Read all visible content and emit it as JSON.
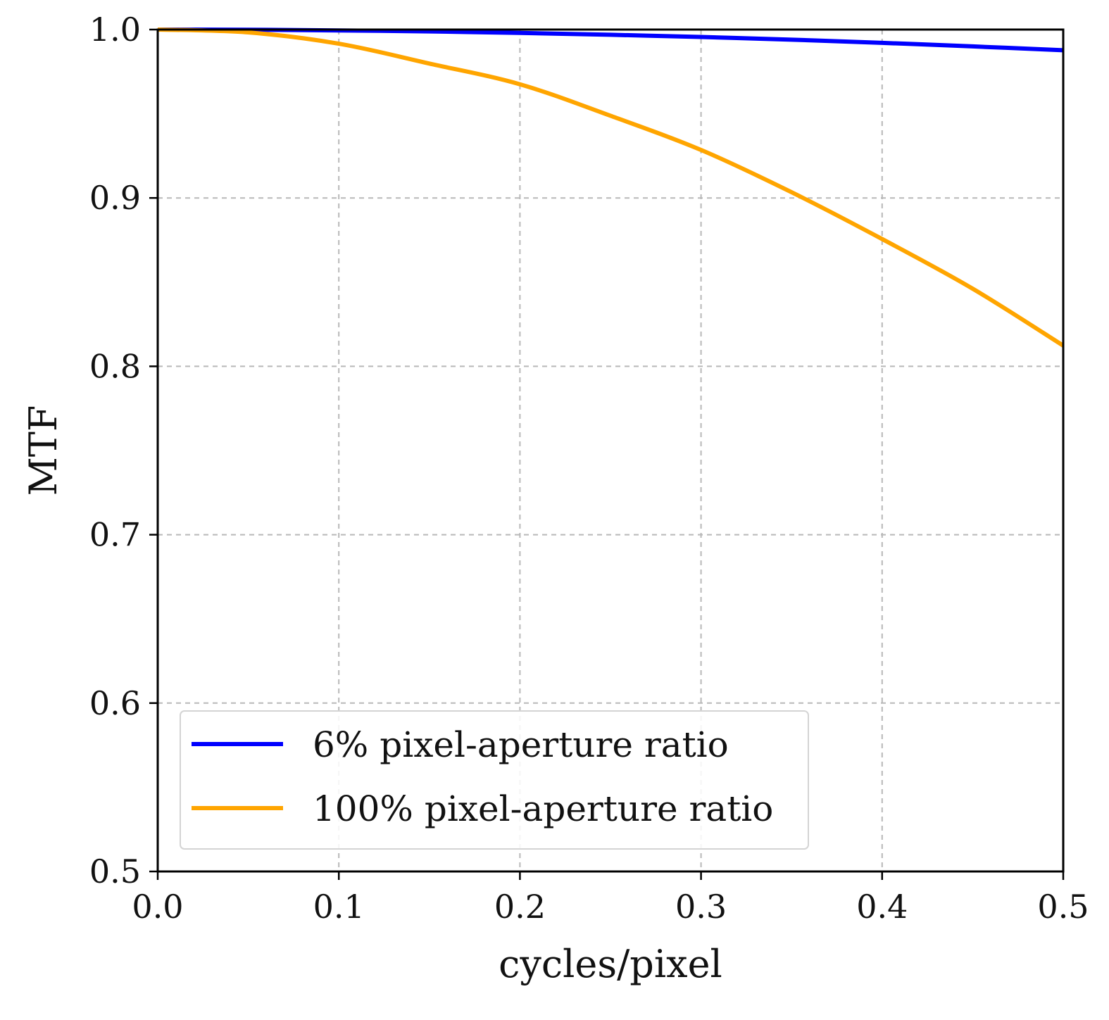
{
  "chart_data": {
    "type": "line",
    "title": "",
    "xlabel": "cycles/pixel",
    "ylabel": "MTF",
    "xlim": [
      0.0,
      0.5
    ],
    "ylim": [
      0.5,
      1.0
    ],
    "grid": true,
    "legend_position": "lower-left",
    "x_ticks": [
      {
        "value": 0.0,
        "label": "0.0"
      },
      {
        "value": 0.1,
        "label": "0.1"
      },
      {
        "value": 0.2,
        "label": "0.2"
      },
      {
        "value": 0.3,
        "label": "0.3"
      },
      {
        "value": 0.4,
        "label": "0.4"
      },
      {
        "value": 0.5,
        "label": "0.5"
      }
    ],
    "y_ticks": [
      {
        "value": 0.5,
        "label": "0.5"
      },
      {
        "value": 0.6,
        "label": "0.6"
      },
      {
        "value": 0.7,
        "label": "0.7"
      },
      {
        "value": 0.8,
        "label": "0.8"
      },
      {
        "value": 0.9,
        "label": "0.9"
      },
      {
        "value": 1.0,
        "label": "1.0"
      }
    ],
    "series": [
      {
        "name": "6% pixel-aperture ratio",
        "color": "#0000ff",
        "x": [
          0.0,
          0.05,
          0.1,
          0.15,
          0.2,
          0.25,
          0.3,
          0.35,
          0.4,
          0.45,
          0.5
        ],
        "y": [
          1.0,
          0.9999,
          0.9995,
          0.9989,
          0.998,
          0.9969,
          0.9956,
          0.994,
          0.9921,
          0.99,
          0.9877
        ]
      },
      {
        "name": "100% pixel-aperture ratio",
        "color": "#ffa500",
        "x": [
          0.0,
          0.05,
          0.1,
          0.15,
          0.2,
          0.25,
          0.3,
          0.35,
          0.4,
          0.45,
          0.5
        ],
        "y": [
          1.0,
          0.9983,
          0.9916,
          0.9798,
          0.9675,
          0.9488,
          0.9285,
          0.9034,
          0.8756,
          0.8461,
          0.8123
        ]
      }
    ]
  }
}
